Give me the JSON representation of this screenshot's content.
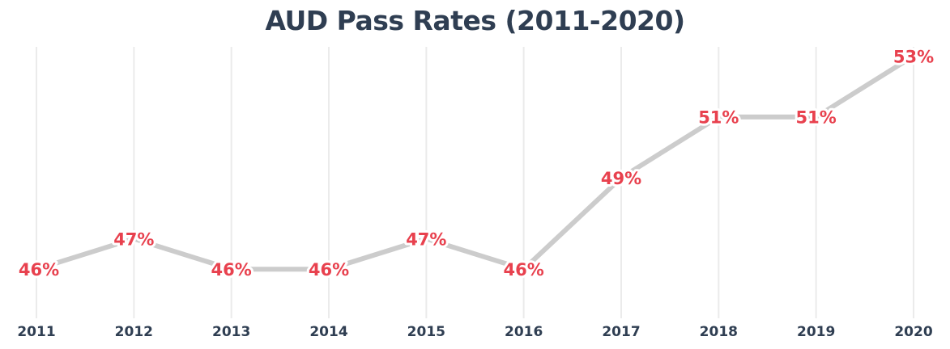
{
  "chart_data": {
    "type": "line",
    "title": "AUD Pass Rates (2011-2020)",
    "categories": [
      "2011",
      "2012",
      "2013",
      "2014",
      "2015",
      "2016",
      "2017",
      "2018",
      "2019",
      "2020"
    ],
    "series": [
      {
        "values": [
          46,
          47,
          46,
          46,
          47,
          46,
          49,
          51,
          51,
          53
        ],
        "data_labels": [
          "46%",
          "47%",
          "46%",
          "46%",
          "47%",
          "46%",
          "49%",
          "51%",
          "51%",
          "53%"
        ]
      }
    ],
    "ylim": [
      44.6,
      53.3
    ],
    "grid": "vertical",
    "legend": "none",
    "xlabel": "",
    "ylabel": "",
    "colors": {
      "line": "#cccccc",
      "label": "#e8414e",
      "tick": "#2f3e52",
      "grid": "#ebebeb"
    }
  }
}
